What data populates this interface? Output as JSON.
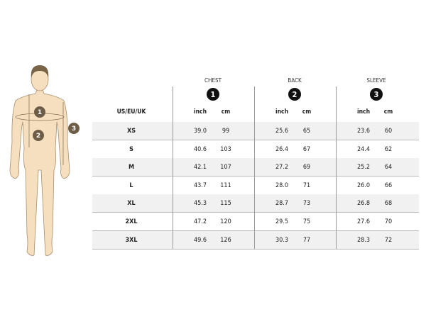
{
  "figure": {
    "skin_color": "#f5dfbf",
    "outline_color": "#a88f6e",
    "hair_color": "#7a6448",
    "marker_color": "#6e5d46",
    "markers": [
      "1",
      "2",
      "3"
    ]
  },
  "table": {
    "size_header": "US/EU/UK",
    "groups": [
      {
        "title": "CHEST",
        "number": "1",
        "units": [
          "inch",
          "cm"
        ]
      },
      {
        "title": "BACK",
        "number": "2",
        "units": [
          "inch",
          "cm"
        ]
      },
      {
        "title": "SLEEVE",
        "number": "3",
        "units": [
          "inch",
          "cm"
        ]
      }
    ],
    "rows": [
      {
        "size": "XS",
        "values": [
          "39.0",
          "99",
          "25.6",
          "65",
          "23.6",
          "60"
        ]
      },
      {
        "size": "S",
        "values": [
          "40.6",
          "103",
          "26.4",
          "67",
          "24.4",
          "62"
        ]
      },
      {
        "size": "M",
        "values": [
          "42.1",
          "107",
          "27.2",
          "69",
          "25.2",
          "64"
        ]
      },
      {
        "size": "L",
        "values": [
          "43.7",
          "111",
          "28.0",
          "71",
          "26.0",
          "66"
        ]
      },
      {
        "size": "XL",
        "values": [
          "45.3",
          "115",
          "28.7",
          "73",
          "26.8",
          "68"
        ]
      },
      {
        "size": "2XL",
        "values": [
          "47.2",
          "120",
          "29.5",
          "75",
          "27.6",
          "70"
        ]
      },
      {
        "size": "3XL",
        "values": [
          "49.6",
          "126",
          "30.3",
          "77",
          "28.3",
          "72"
        ]
      }
    ]
  }
}
